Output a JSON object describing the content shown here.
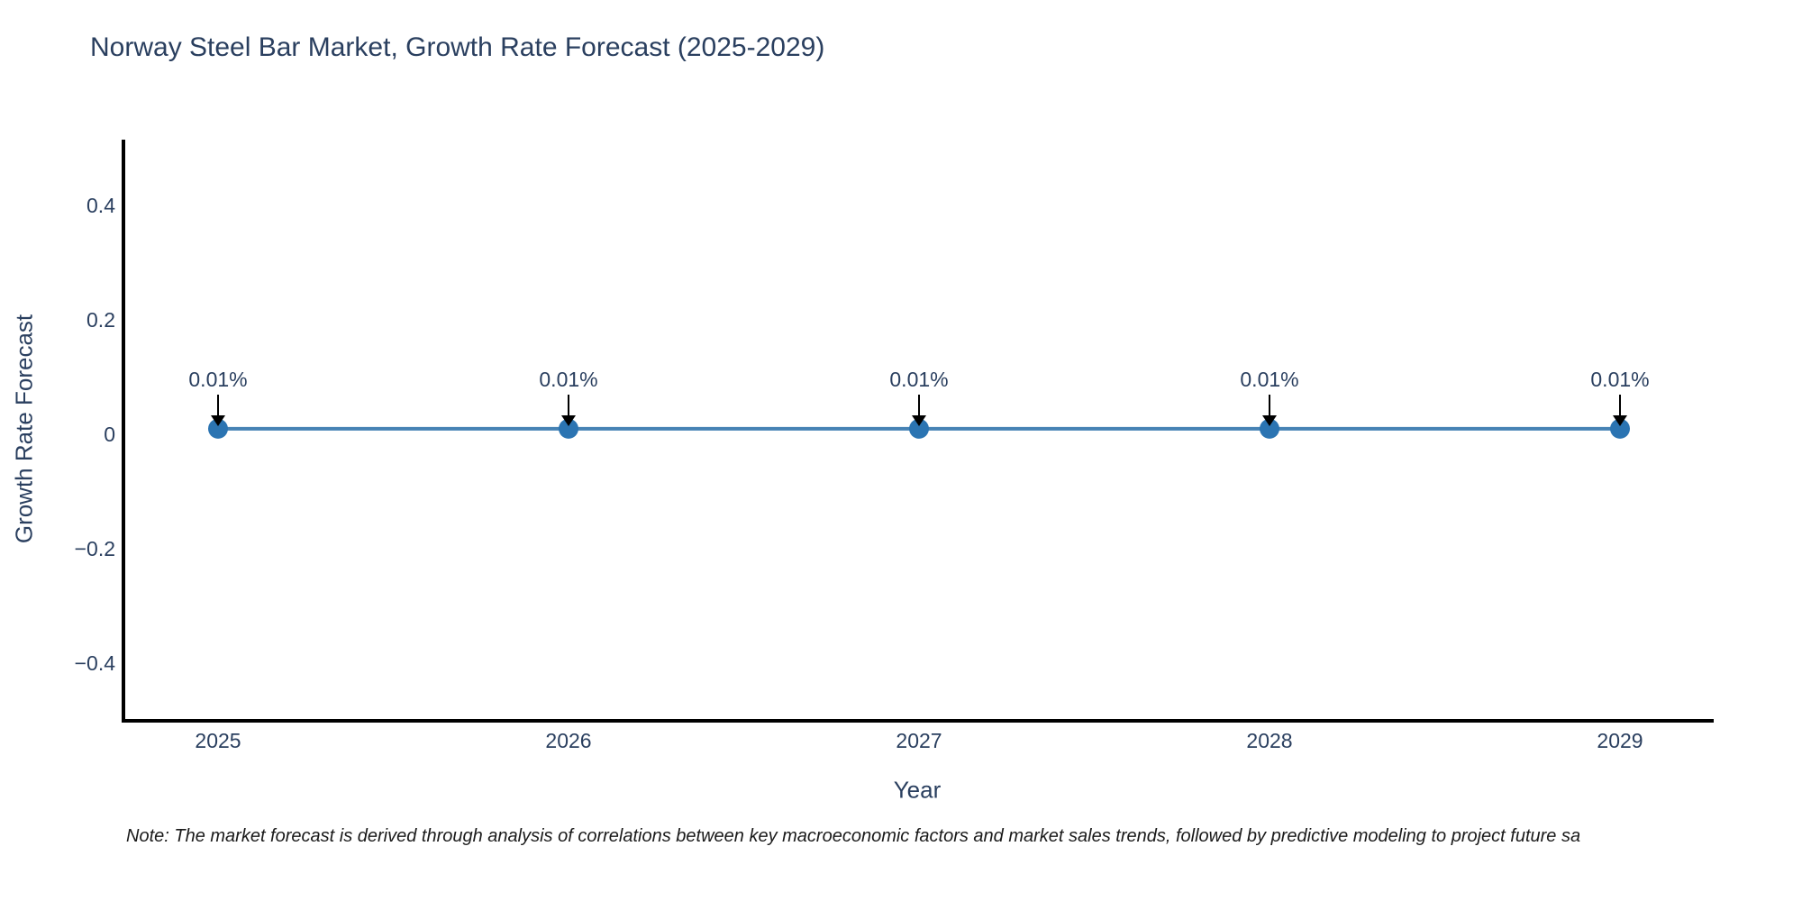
{
  "title": "Norway Steel Bar Market, Growth Rate Forecast (2025-2029)",
  "note": "Note: The market forecast is derived through analysis of correlations between key macroeconomic factors and market sales trends, followed by predictive modeling to project future sa",
  "chart_data": {
    "type": "line",
    "title": "Norway Steel Bar Market, Growth Rate Forecast (2025-2029)",
    "xlabel": "Year",
    "ylabel": "Growth Rate Forecast",
    "categories": [
      "2025",
      "2026",
      "2027",
      "2028",
      "2029"
    ],
    "values": [
      0.01,
      0.01,
      0.01,
      0.01,
      0.01
    ],
    "point_labels": [
      "0.01%",
      "0.01%",
      "0.01%",
      "0.01%",
      "0.01%"
    ],
    "yticks": [
      0.4,
      0.2,
      0,
      -0.2,
      -0.4
    ],
    "ylim": [
      -0.5,
      0.51
    ],
    "grid": false,
    "legend": "none",
    "colors": {
      "line": "#4682b4",
      "marker": "#2b74b2",
      "axis": "#000000",
      "text": "#2a3f5f",
      "arrow": "#000000"
    }
  }
}
